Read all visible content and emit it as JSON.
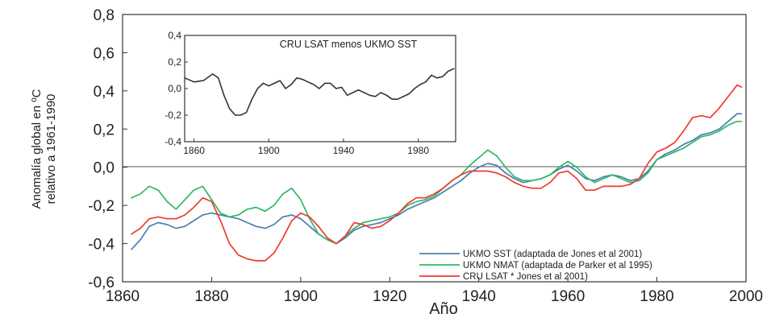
{
  "chart_data": [
    {
      "type": "line",
      "title": "",
      "xlabel": "Año",
      "ylabel_lines": [
        "Anomalía global en ºC",
        "relativo a 1961-1990"
      ],
      "xlim": [
        1860,
        2000
      ],
      "ylim": [
        -0.6,
        0.8
      ],
      "xticks": [
        "1860",
        "1880",
        "1900",
        "1920",
        "1940",
        "1960",
        "1980",
        "2000"
      ],
      "yticks": [
        "0,8",
        "0,6",
        "0,4",
        "0,2",
        "0,0",
        "-0,2",
        "-0,4",
        "-0,6"
      ],
      "legend_position": "bottom-right",
      "series": [
        {
          "name": "UKMO SST (adaptada de Jones et al 2001)",
          "color": "#4a7fb0",
          "x": [
            1862,
            1864,
            1866,
            1868,
            1870,
            1872,
            1874,
            1876,
            1878,
            1880,
            1882,
            1884,
            1886,
            1888,
            1890,
            1892,
            1894,
            1896,
            1898,
            1900,
            1902,
            1904,
            1906,
            1908,
            1910,
            1912,
            1914,
            1916,
            1918,
            1920,
            1922,
            1924,
            1926,
            1928,
            1930,
            1932,
            1934,
            1936,
            1938,
            1940,
            1942,
            1944,
            1946,
            1948,
            1950,
            1952,
            1954,
            1956,
            1958,
            1960,
            1962,
            1964,
            1966,
            1968,
            1970,
            1972,
            1974,
            1976,
            1978,
            1980,
            1982,
            1984,
            1986,
            1988,
            1990,
            1992,
            1994,
            1996,
            1998,
            1999
          ],
          "values": [
            -0.43,
            -0.38,
            -0.31,
            -0.29,
            -0.3,
            -0.32,
            -0.31,
            -0.28,
            -0.25,
            -0.24,
            -0.25,
            -0.26,
            -0.27,
            -0.29,
            -0.31,
            -0.32,
            -0.3,
            -0.26,
            -0.25,
            -0.27,
            -0.31,
            -0.35,
            -0.38,
            -0.4,
            -0.37,
            -0.33,
            -0.31,
            -0.3,
            -0.29,
            -0.27,
            -0.25,
            -0.22,
            -0.2,
            -0.18,
            -0.16,
            -0.13,
            -0.1,
            -0.07,
            -0.03,
            0.0,
            0.02,
            0.01,
            -0.03,
            -0.06,
            -0.08,
            -0.07,
            -0.06,
            -0.04,
            -0.01,
            0.01,
            -0.02,
            -0.06,
            -0.07,
            -0.05,
            -0.04,
            -0.05,
            -0.07,
            -0.06,
            -0.02,
            0.04,
            0.07,
            0.09,
            0.12,
            0.14,
            0.17,
            0.18,
            0.2,
            0.24,
            0.28,
            0.28
          ]
        },
        {
          "name": "UKMO NMAT (adaptada de Parker et al 1995)",
          "color": "#2fb86a",
          "x": [
            1862,
            1864,
            1866,
            1868,
            1870,
            1872,
            1874,
            1876,
            1878,
            1880,
            1882,
            1884,
            1886,
            1888,
            1890,
            1892,
            1894,
            1896,
            1898,
            1900,
            1902,
            1904,
            1906,
            1908,
            1910,
            1912,
            1914,
            1916,
            1918,
            1920,
            1922,
            1924,
            1926,
            1928,
            1930,
            1932,
            1934,
            1936,
            1938,
            1940,
            1942,
            1944,
            1946,
            1948,
            1950,
            1952,
            1954,
            1956,
            1958,
            1960,
            1962,
            1964,
            1966,
            1968,
            1970,
            1972,
            1974,
            1976,
            1978,
            1980,
            1982,
            1984,
            1986,
            1988,
            1990,
            1992,
            1994,
            1996,
            1998,
            1999
          ],
          "values": [
            -0.16,
            -0.14,
            -0.1,
            -0.12,
            -0.18,
            -0.22,
            -0.17,
            -0.12,
            -0.1,
            -0.17,
            -0.24,
            -0.26,
            -0.25,
            -0.22,
            -0.21,
            -0.23,
            -0.2,
            -0.14,
            -0.11,
            -0.17,
            -0.27,
            -0.35,
            -0.38,
            -0.4,
            -0.36,
            -0.32,
            -0.29,
            -0.28,
            -0.27,
            -0.26,
            -0.24,
            -0.2,
            -0.18,
            -0.17,
            -0.15,
            -0.11,
            -0.07,
            -0.04,
            0.01,
            0.05,
            0.09,
            0.06,
            0.0,
            -0.05,
            -0.07,
            -0.07,
            -0.06,
            -0.04,
            0.0,
            0.03,
            0.0,
            -0.05,
            -0.08,
            -0.06,
            -0.04,
            -0.06,
            -0.08,
            -0.07,
            -0.03,
            0.04,
            0.06,
            0.08,
            0.1,
            0.13,
            0.16,
            0.17,
            0.19,
            0.22,
            0.24,
            0.24
          ]
        },
        {
          "name": "CRU LSAT * Jones et al 2001)",
          "color": "#ef3b2c",
          "x": [
            1862,
            1864,
            1866,
            1868,
            1870,
            1872,
            1874,
            1876,
            1878,
            1880,
            1882,
            1884,
            1886,
            1888,
            1890,
            1892,
            1894,
            1896,
            1898,
            1900,
            1902,
            1904,
            1906,
            1908,
            1910,
            1912,
            1914,
            1916,
            1918,
            1920,
            1922,
            1924,
            1926,
            1928,
            1930,
            1932,
            1934,
            1936,
            1938,
            1940,
            1942,
            1944,
            1946,
            1948,
            1950,
            1952,
            1954,
            1956,
            1958,
            1960,
            1962,
            1964,
            1966,
            1968,
            1970,
            1972,
            1974,
            1976,
            1978,
            1980,
            1982,
            1984,
            1986,
            1988,
            1990,
            1992,
            1994,
            1996,
            1998,
            1999
          ],
          "values": [
            -0.35,
            -0.32,
            -0.27,
            -0.26,
            -0.27,
            -0.27,
            -0.25,
            -0.21,
            -0.16,
            -0.18,
            -0.28,
            -0.4,
            -0.46,
            -0.48,
            -0.49,
            -0.49,
            -0.45,
            -0.37,
            -0.28,
            -0.24,
            -0.26,
            -0.31,
            -0.37,
            -0.4,
            -0.36,
            -0.29,
            -0.3,
            -0.32,
            -0.31,
            -0.28,
            -0.24,
            -0.19,
            -0.16,
            -0.16,
            -0.14,
            -0.11,
            -0.07,
            -0.04,
            -0.02,
            -0.02,
            -0.02,
            -0.03,
            -0.05,
            -0.08,
            -0.1,
            -0.11,
            -0.11,
            -0.08,
            -0.03,
            -0.02,
            -0.06,
            -0.12,
            -0.12,
            -0.1,
            -0.1,
            -0.1,
            -0.09,
            -0.06,
            0.02,
            0.08,
            0.1,
            0.13,
            0.19,
            0.26,
            0.27,
            0.26,
            0.31,
            0.37,
            0.43,
            0.42
          ]
        }
      ]
    },
    {
      "type": "line",
      "title": "CRU LSAT menos UKMO SST",
      "xlabel": "",
      "ylabel": "",
      "xlim": [
        1855,
        2000
      ],
      "ylim": [
        -0.4,
        0.4
      ],
      "xticks": [
        "1860",
        "1900",
        "1940",
        "1980"
      ],
      "yticks": [
        "0,4",
        "0,2",
        "0,0",
        "-0,2",
        "-0,4"
      ],
      "series": [
        {
          "color": "#333333",
          "x": [
            1855,
            1860,
            1865,
            1870,
            1873,
            1876,
            1879,
            1882,
            1885,
            1888,
            1891,
            1894,
            1897,
            1900,
            1903,
            1906,
            1909,
            1912,
            1915,
            1918,
            1921,
            1924,
            1927,
            1930,
            1933,
            1936,
            1939,
            1942,
            1945,
            1948,
            1951,
            1954,
            1957,
            1960,
            1963,
            1966,
            1969,
            1972,
            1975,
            1978,
            1981,
            1984,
            1987,
            1990,
            1993,
            1996,
            1999
          ],
          "values": [
            0.08,
            0.05,
            0.06,
            0.11,
            0.08,
            -0.05,
            -0.15,
            -0.2,
            -0.2,
            -0.18,
            -0.08,
            0.0,
            0.04,
            0.02,
            0.04,
            0.06,
            0.0,
            0.03,
            0.08,
            0.07,
            0.05,
            0.03,
            0.0,
            0.04,
            0.04,
            0.0,
            0.01,
            -0.05,
            -0.03,
            -0.01,
            -0.03,
            -0.05,
            -0.06,
            -0.03,
            -0.05,
            -0.08,
            -0.08,
            -0.06,
            -0.04,
            0.0,
            0.03,
            0.05,
            0.1,
            0.08,
            0.09,
            0.13,
            0.15
          ]
        }
      ]
    }
  ]
}
